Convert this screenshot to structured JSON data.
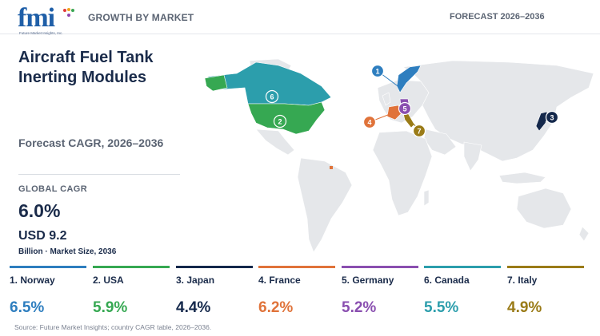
{
  "header": {
    "logo_text": "fmi",
    "logo_subtitle": "Future Market Insights, Inc.",
    "section_label": "GROWTH BY MARKET",
    "forecast_period": "FORECAST 2026–2036"
  },
  "title": "Aircraft Fuel Tank Inerting Modules",
  "forecast_cagr_label": "Forecast CAGR, 2026–2036",
  "global_cagr": {
    "label": "GLOBAL CAGR",
    "value": "6.0%"
  },
  "market_size": {
    "value": "USD 9.2",
    "caption": "Billion · Market Size, 2036"
  },
  "map": {
    "land_color": "#e5e7ea",
    "markers": [
      {
        "number": "1",
        "country": "Norway",
        "color": "#2e7ebf"
      },
      {
        "number": "2",
        "country": "USA",
        "color": "#36a852"
      },
      {
        "number": "3",
        "country": "Japan",
        "color": "#14284b"
      },
      {
        "number": "4",
        "country": "France",
        "color": "#e0733a"
      },
      {
        "number": "5",
        "country": "Germany",
        "color": "#8a4fb0"
      },
      {
        "number": "6",
        "country": "Canada",
        "color": "#2c9eac"
      },
      {
        "number": "7",
        "country": "Italy",
        "color": "#9a7b17"
      }
    ]
  },
  "countries": [
    {
      "label": "1. Norway",
      "value": "6.5%",
      "color": "#2e7ebf"
    },
    {
      "label": "2. USA",
      "value": "5.9%",
      "color": "#36a852"
    },
    {
      "label": "3. Japan",
      "value": "4.4%",
      "color": "#14284b"
    },
    {
      "label": "4. France",
      "value": "6.2%",
      "color": "#e0733a"
    },
    {
      "label": "5. Germany",
      "value": "5.2%",
      "color": "#8a4fb0"
    },
    {
      "label": "6. Canada",
      "value": "5.5%",
      "color": "#2c9eac"
    },
    {
      "label": "7. Italy",
      "value": "4.9%",
      "color": "#9a7b17"
    }
  ],
  "source": "Source: Future Market Insights; country CAGR table, 2026–2036."
}
